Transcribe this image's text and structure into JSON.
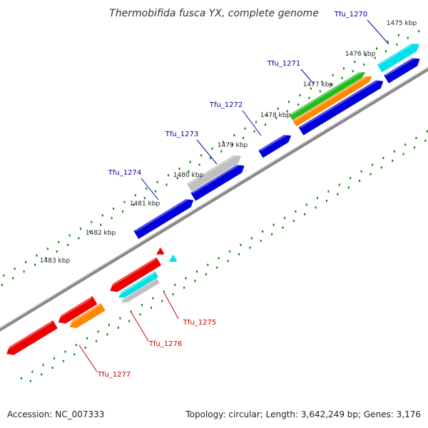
{
  "title": "Thermobifida fusca YX, complete genome",
  "footer": {
    "accession": "Accession: NC_007333",
    "summary": "Topology: circular; Length: 3,642,249 bp; Genes: 3,176"
  },
  "ticks": [
    "1475 kbp",
    "1476 kbp",
    "1477 kbp",
    "1478 kbp",
    "1479 kbp",
    "1480 kbp",
    "1481 kbp",
    "1482 kbp",
    "1483 kbp"
  ],
  "colors": {
    "cds_forward": "#0000dd",
    "cds_reverse": "#ee0000",
    "backbone": "#888888",
    "dots": "#008800",
    "label_forward": "#0000aa",
    "label_reverse": "#cc0000",
    "rna_cyan": "#00e0e8",
    "rna_green": "#22bb22",
    "rna_orange": "#ff8800",
    "rna_gray": "#c0c0c0"
  },
  "genes": [
    {
      "name": "Tfu_1270",
      "strand": "forward"
    },
    {
      "name": "Tfu_1271",
      "strand": "forward"
    },
    {
      "name": "Tfu_1272",
      "strand": "forward"
    },
    {
      "name": "Tfu_1273",
      "strand": "forward"
    },
    {
      "name": "Tfu_1274",
      "strand": "forward"
    },
    {
      "name": "Tfu_1275",
      "strand": "reverse"
    },
    {
      "name": "Tfu_1276",
      "strand": "reverse"
    },
    {
      "name": "Tfu_1277",
      "strand": "reverse"
    }
  ]
}
